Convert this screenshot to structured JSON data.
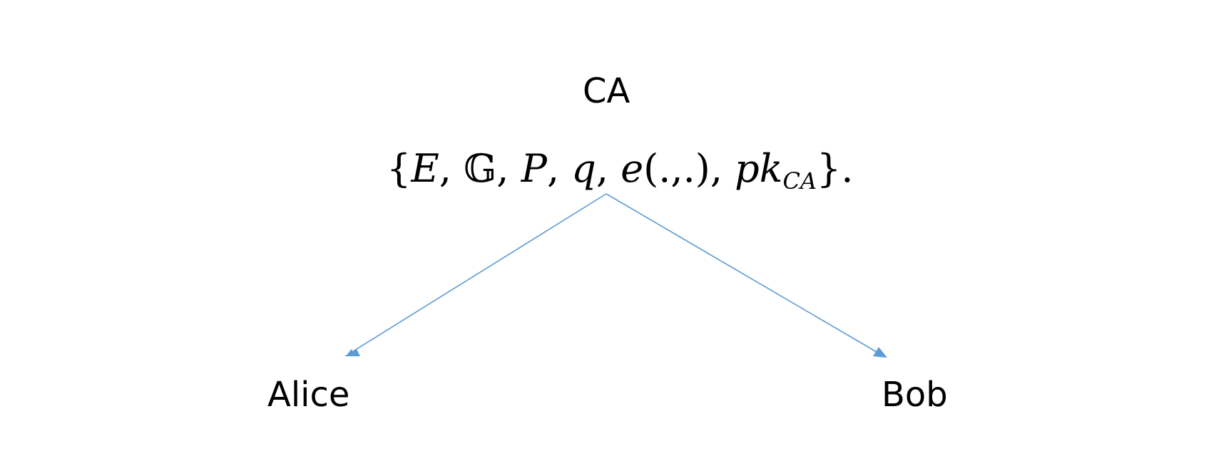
{
  "nodes": {
    "ca": "CA",
    "alice": "Alice",
    "bob": "Bob"
  },
  "parameters": {
    "open_brace": "{",
    "E": "E",
    "sep1": ", ",
    "group": "𝔾",
    "sep2": ", ",
    "P": "P",
    "sep3": ", ",
    "q": "q",
    "sep4": ", ",
    "pairing": "e",
    "pairing_args": "(.,.)",
    "sep5": ", ",
    "pk": "pk",
    "pk_sub": "CA",
    "close": "}."
  },
  "colors": {
    "arrow": "#5b9bd5",
    "text": "#000000"
  }
}
